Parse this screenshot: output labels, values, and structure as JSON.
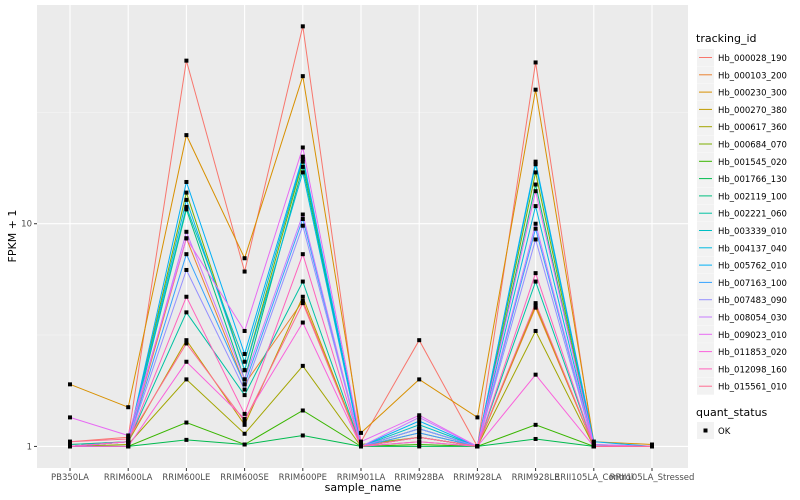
{
  "chart_data": {
    "type": "line",
    "title": "",
    "xlabel": "sample_name",
    "ylabel": "FPKM + 1",
    "y_scale": "log10",
    "ylim": [
      0.8,
      96
    ],
    "y_ticks": [
      1,
      10
    ],
    "y_tick_labels": [
      "1",
      "10"
    ],
    "grid": true,
    "legend_position": "right",
    "categories": [
      "PB350LA",
      "RRIM600LA",
      "RRIM600LE",
      "RRIM600SE",
      "RRIM600PE",
      "RRIM901LA",
      "RRIM928BA",
      "RRIM928LA",
      "RRIM928LE",
      "RRII105LA_Control",
      "RRII105LA_Stressed"
    ],
    "color_legend_title": "tracking_id",
    "shape_legend_title": "quant_status",
    "shape_legend_items": [
      "OK"
    ],
    "series": [
      {
        "name": "Hb_000028_190",
        "color": "#F8766D",
        "values": [
          1.05,
          1.1,
          54,
          6.1,
          77,
          1.05,
          3.0,
          1.0,
          53,
          1.0,
          1.0
        ]
      },
      {
        "name": "Hb_000103_200",
        "color": "#EA8331",
        "values": [
          1.02,
          1.05,
          8.6,
          1.9,
          4.5,
          1.0,
          1.15,
          1.0,
          4.2,
          1.0,
          1.0
        ]
      },
      {
        "name": "Hb_000230_300",
        "color": "#D89000",
        "values": [
          1.9,
          1.5,
          25,
          7.0,
          46,
          1.15,
          2.0,
          1.35,
          40,
          1.05,
          1.02
        ]
      },
      {
        "name": "Hb_000270_380",
        "color": "#C09B00",
        "values": [
          1.0,
          1.05,
          3.0,
          1.25,
          4.7,
          1.0,
          1.1,
          1.0,
          4.3,
          1.0,
          1.0
        ]
      },
      {
        "name": "Hb_000617_360",
        "color": "#A3A500",
        "values": [
          1.0,
          1.02,
          2.0,
          1.14,
          2.3,
          1.0,
          1.05,
          1.0,
          3.3,
          1.0,
          1.0
        ]
      },
      {
        "name": "Hb_000684_070",
        "color": "#7CAE00",
        "values": [
          1.0,
          1.05,
          13.8,
          2.2,
          19,
          1.02,
          1.1,
          1.0,
          17,
          1.0,
          1.0
        ]
      },
      {
        "name": "Hb_001545_020",
        "color": "#39B600",
        "values": [
          1.0,
          1.0,
          1.28,
          1.02,
          1.45,
          1.0,
          1.02,
          1.0,
          1.25,
          1.0,
          1.0
        ]
      },
      {
        "name": "Hb_001766_130",
        "color": "#00BB4E",
        "values": [
          1.0,
          1.0,
          1.07,
          1.02,
          1.12,
          1.0,
          1.0,
          1.0,
          1.08,
          1.0,
          1.0
        ]
      },
      {
        "name": "Hb_002119_100",
        "color": "#00BF7D",
        "values": [
          1.0,
          1.05,
          11.6,
          2.0,
          18,
          1.0,
          1.2,
          1.0,
          15,
          1.0,
          1.0
        ]
      },
      {
        "name": "Hb_002221_060",
        "color": "#00C1A3",
        "values": [
          1.02,
          1.05,
          4.0,
          1.7,
          5.5,
          1.0,
          1.1,
          1.0,
          5.5,
          1.0,
          1.0
        ]
      },
      {
        "name": "Hb_003339_010",
        "color": "#00BFC4",
        "values": [
          1.0,
          1.05,
          11.9,
          2.4,
          19.5,
          1.0,
          1.25,
          1.0,
          18.5,
          1.02,
          1.0
        ]
      },
      {
        "name": "Hb_004137_040",
        "color": "#00BAE0",
        "values": [
          1.0,
          1.05,
          12.8,
          2.2,
          17,
          1.0,
          1.2,
          1.0,
          12,
          1.0,
          1.0
        ]
      },
      {
        "name": "Hb_005762_010",
        "color": "#00B0F6",
        "values": [
          1.0,
          1.05,
          15.4,
          2.6,
          20,
          1.0,
          1.3,
          1.0,
          19,
          1.05,
          1.0
        ]
      },
      {
        "name": "Hb_007163_100",
        "color": "#35A2FF",
        "values": [
          1.0,
          1.05,
          7.3,
          1.9,
          10.5,
          1.0,
          1.15,
          1.0,
          9.5,
          1.0,
          1.0
        ]
      },
      {
        "name": "Hb_007483_090",
        "color": "#9590FF",
        "values": [
          1.0,
          1.05,
          6.2,
          1.8,
          9.8,
          1.0,
          1.2,
          1.0,
          8.5,
          1.0,
          1.0
        ]
      },
      {
        "name": "Hb_008054_030",
        "color": "#C77CFF",
        "values": [
          1.0,
          1.05,
          9.2,
          2.0,
          11,
          1.0,
          1.35,
          1.0,
          10,
          1.0,
          1.0
        ]
      },
      {
        "name": "Hb_009023_010",
        "color": "#E76BF3",
        "values": [
          1.35,
          1.12,
          8.6,
          3.3,
          22,
          1.05,
          1.38,
          1.0,
          14,
          1.02,
          1.0
        ]
      },
      {
        "name": "Hb_011853_020",
        "color": "#FA62DB",
        "values": [
          1.0,
          1.0,
          2.4,
          1.33,
          3.6,
          1.0,
          1.05,
          1.0,
          2.1,
          1.0,
          1.0
        ]
      },
      {
        "name": "Hb_012098_160",
        "color": "#FF62BC",
        "values": [
          1.0,
          1.05,
          4.7,
          1.4,
          7.3,
          1.0,
          1.1,
          1.0,
          6.0,
          1.0,
          1.0
        ]
      },
      {
        "name": "Hb_015561_010",
        "color": "#FF6C91",
        "values": [
          1.05,
          1.08,
          2.9,
          1.3,
          4.4,
          1.0,
          1.1,
          1.0,
          4.4,
          1.0,
          1.0
        ]
      }
    ]
  }
}
